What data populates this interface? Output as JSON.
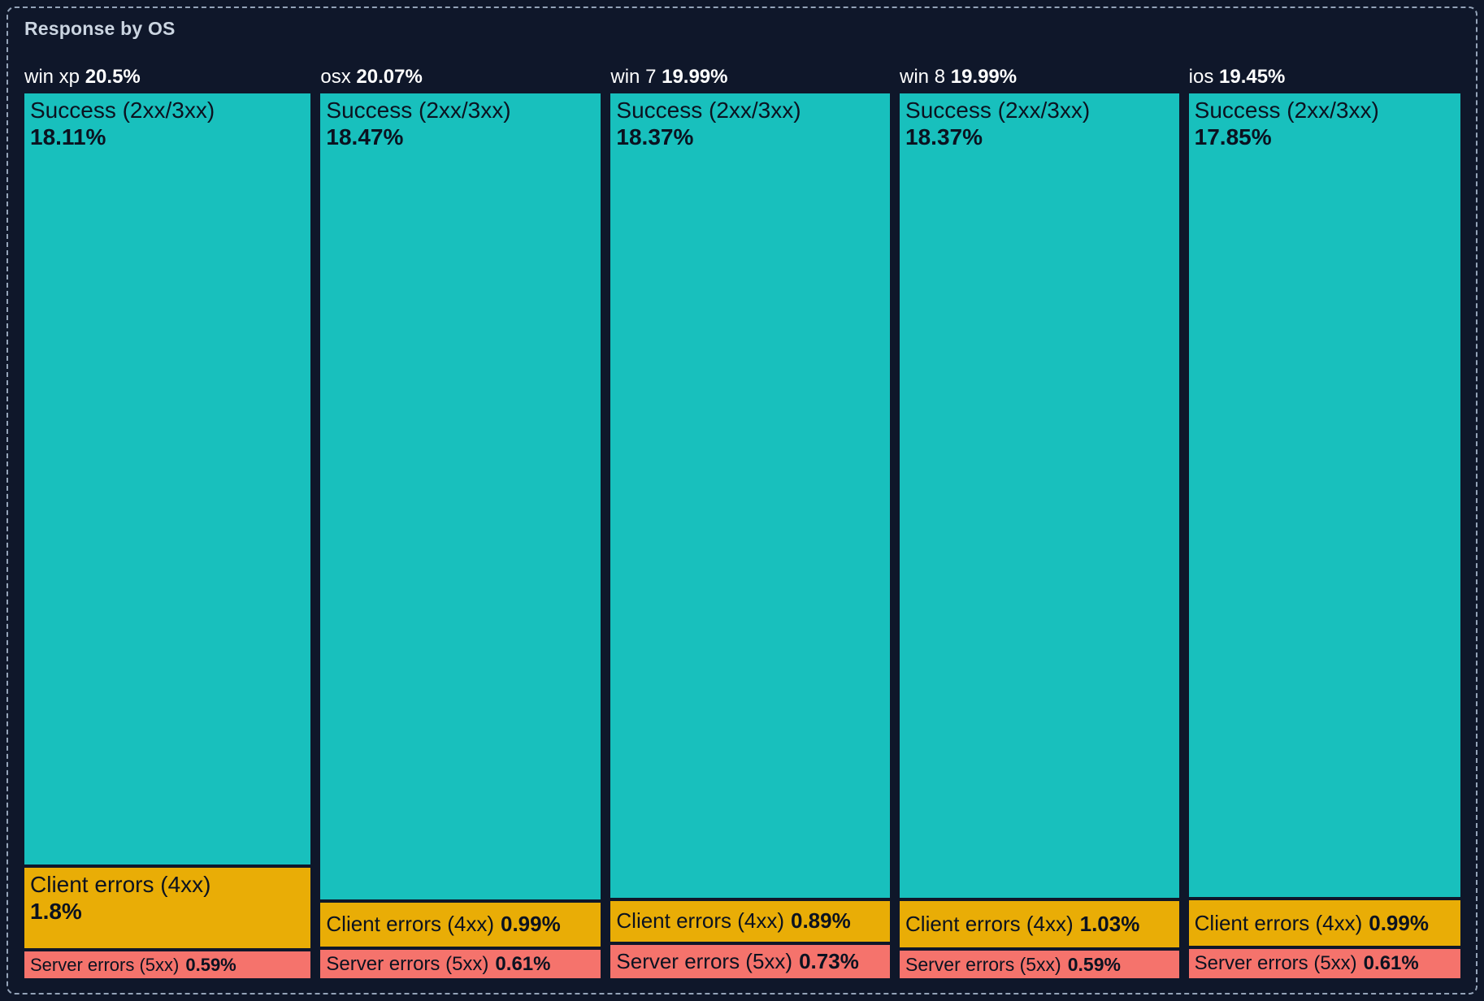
{
  "panel": {
    "title": "Response by OS",
    "background_color": "#0F172A",
    "border_color": "#94A3B8",
    "title_color": "#CBD5E1",
    "header_text_color": "#FFFFFF",
    "segment_text_color": "#0B1220"
  },
  "chart_data": {
    "type": "treemap",
    "layout": "mosaic-columns",
    "title": "Response by OS",
    "legend_position": "none",
    "grid": false,
    "value_suffix": "%",
    "categories": [
      "win xp",
      "osx",
      "win 7",
      "win 8",
      "ios"
    ],
    "category_totals_pct": [
      20.5,
      20.07,
      19.99,
      19.99,
      19.45
    ],
    "series": [
      {
        "name": "Success (2xx/3xx)",
        "color": "#18C0BD",
        "values": [
          18.11,
          18.47,
          18.37,
          18.37,
          17.85
        ]
      },
      {
        "name": "Client errors (4xx)",
        "color": "#E9AD06",
        "values": [
          1.8,
          0.99,
          0.89,
          1.03,
          0.99
        ]
      },
      {
        "name": "Server errors (5xx)",
        "color": "#F5736C",
        "values": [
          0.59,
          0.61,
          0.73,
          0.59,
          0.61
        ]
      }
    ]
  }
}
